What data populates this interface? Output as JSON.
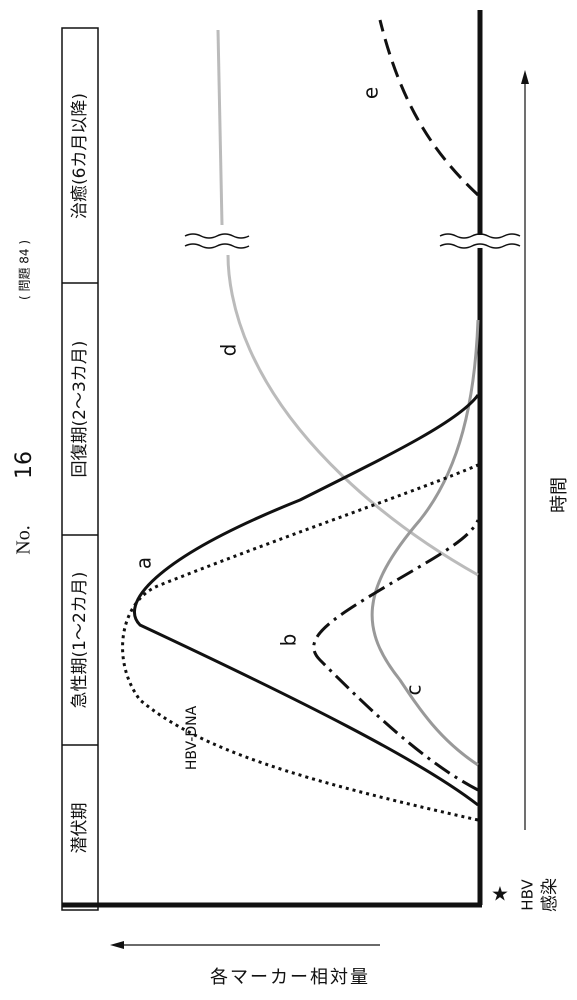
{
  "header": {
    "number_prefix": "No.",
    "number": "16",
    "problem": "( 問題 84 )"
  },
  "phases": [
    "潜伏期",
    "急性期(1〜2カ月)",
    "回復期(2〜3カ月)",
    "治癒(6カ月以降)"
  ],
  "curve_labels": {
    "a": "a",
    "b": "b",
    "c": "c",
    "d": "d",
    "e": "e",
    "hbv_dna": "HBV-DNA"
  },
  "infection": {
    "marker": "★",
    "line1": "HBV",
    "line2": "感染"
  },
  "x_axis_label": "時間",
  "y_axis_label": "各マーカー相対量"
}
